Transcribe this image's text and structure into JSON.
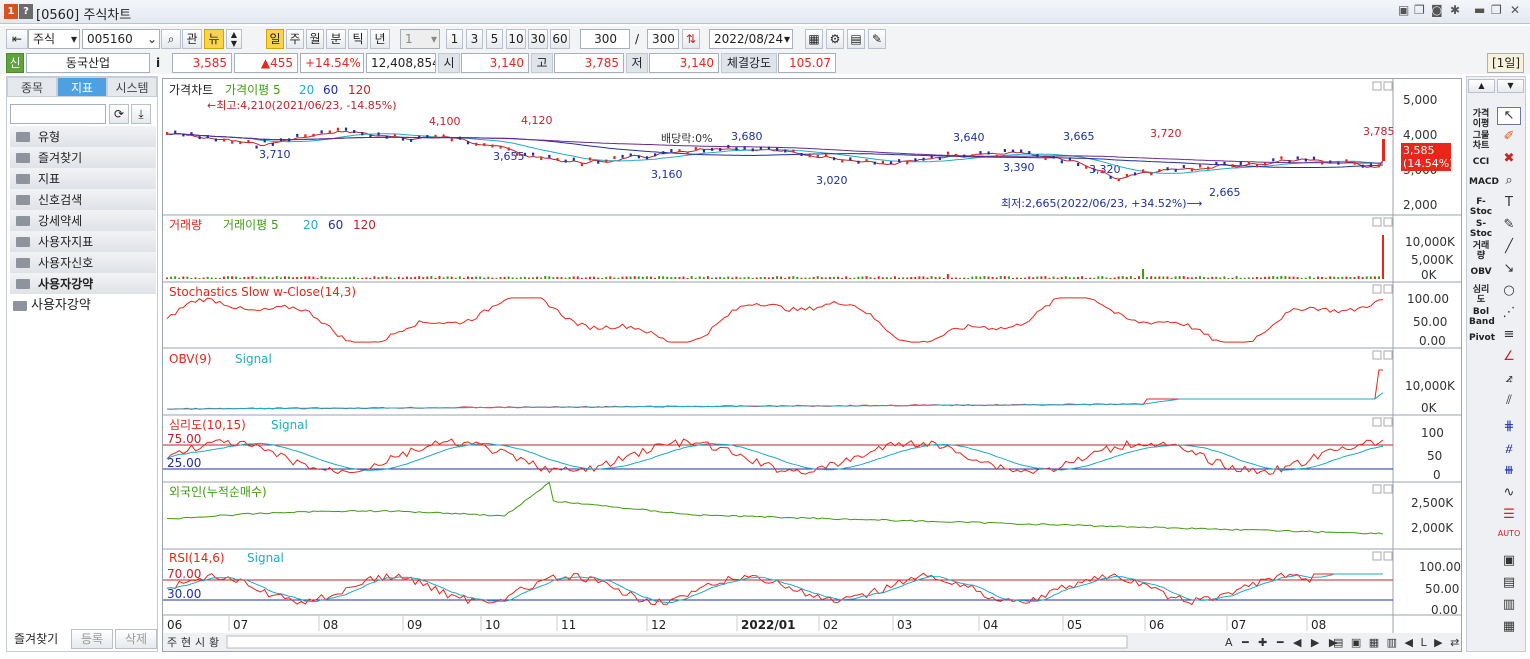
{
  "window": {
    "num": "1",
    "help": "?",
    "title": "[0560] 주식차트"
  },
  "toolbar": {
    "market": "주식",
    "code": "005160",
    "btn_gwan": "관",
    "btn_news": "뉴",
    "periods": [
      "일",
      "주",
      "월",
      "분",
      "틱",
      "년"
    ],
    "interval": "1",
    "intervals": [
      "1",
      "3",
      "5",
      "10",
      "30",
      "60"
    ],
    "count": "300",
    "count_max": "300",
    "date": "2022/08/24"
  },
  "quote": {
    "name": "동국산업",
    "info": "i",
    "price": "3,585",
    "change": "▲455",
    "rate": "+14.54%",
    "volume": "12,408,854",
    "open_label": "시",
    "open": "3,140",
    "high_label": "고",
    "high": "3,785",
    "low_label": "저",
    "low": "3,140",
    "strength_label": "체결강도",
    "strength": "105.07",
    "period_tag": "[1일]"
  },
  "sidebar": {
    "tabs": [
      "종목",
      "지표",
      "시스템"
    ],
    "folders": [
      "유형",
      "즐겨찾기",
      "지표",
      "신호검색",
      "강세약세",
      "사용자지표",
      "사용자신호",
      "사용자강약"
    ],
    "open_folder": "사용자강약",
    "bottom": [
      "즐겨찾기",
      "등록",
      "삭제"
    ]
  },
  "price_panel": {
    "legend": [
      "가격차트",
      "가격이평 5",
      "20",
      "60",
      "120"
    ],
    "yticks": [
      "5,000",
      "4,000",
      "3,000",
      "2,000"
    ],
    "last_price": "3,585",
    "last_rate": "(14.54%)",
    "max_note": "←최고:4,210(2021/06/23, -14.85%)",
    "min_note": "최저:2,665(2022/06/23, +34.52%)⟶",
    "div_note": "배당락:0%",
    "labels": [
      [
        "3,710",
        258,
        157
      ],
      [
        "4,100",
        428,
        124
      ],
      [
        "3,655",
        492,
        159
      ],
      [
        "4,120",
        520,
        123
      ],
      [
        "3,160",
        650,
        177
      ],
      [
        "3,680",
        730,
        139
      ],
      [
        "3,020",
        815,
        183
      ],
      [
        "3,640",
        952,
        140
      ],
      [
        "3,390",
        1002,
        170
      ],
      [
        "3,665",
        1062,
        139
      ],
      [
        "3,320",
        1088,
        172
      ],
      [
        "3,720",
        1149,
        136
      ],
      [
        "2,665",
        1208,
        195
      ],
      [
        "3,785",
        1362,
        134
      ]
    ]
  },
  "volume_panel": {
    "legend": [
      "거래량",
      "거래이평 5",
      "20",
      "60",
      "120"
    ],
    "yticks": [
      "10,000K",
      "5,000K",
      "0K"
    ]
  },
  "stoch_panel": {
    "legend": "Stochastics Slow w-Close(14,3)",
    "yticks": [
      "100.00",
      "50.00",
      "0.00"
    ]
  },
  "obv_panel": {
    "legend": [
      "OBV(9)",
      "Signal"
    ],
    "yticks": [
      "10,000K",
      "0K"
    ]
  },
  "psy_panel": {
    "legend": [
      "심리도(10,15)",
      "Signal"
    ],
    "levels": [
      "75.00",
      "25.00"
    ],
    "yticks": [
      "100",
      "50",
      "0"
    ]
  },
  "foreign_panel": {
    "legend": "외국인(누적순매수)",
    "yticks": [
      "2,500K",
      "2,000K"
    ]
  },
  "rsi_panel": {
    "legend": [
      "RSI(14,6)",
      "Signal"
    ],
    "levels": [
      "70.00",
      "30.00"
    ],
    "yticks": [
      "100.00",
      "50.00",
      "0.00"
    ]
  },
  "xaxis": [
    "06",
    "07",
    "08",
    "09",
    "10",
    "11",
    "12",
    "2022/01",
    "02",
    "03",
    "04",
    "05",
    "06",
    "07",
    "08"
  ],
  "bottombar": [
    "주",
    "현",
    "시",
    "황"
  ],
  "rightbar": {
    "texts": [
      "가격이평",
      "그물차트",
      "CCI",
      "MACD",
      "F-Stoc",
      "S-Stoc",
      "거래량",
      "OBV",
      "심리도",
      "Bol Band",
      "Pivot"
    ]
  },
  "colors": {
    "red": "#e8261a",
    "blue": "#1c2fa6",
    "green": "#3f9b12",
    "cyan": "#22a9c4",
    "purple": "#6a2a8c"
  }
}
